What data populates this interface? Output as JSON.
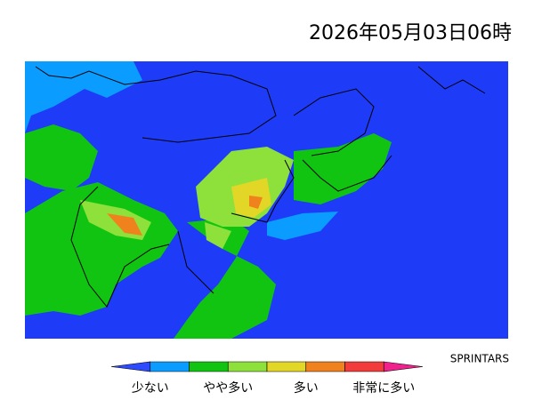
{
  "header": {
    "timestamp": "2026年05月03日06時",
    "model": "SPRINTARS"
  },
  "legend": {
    "colors": [
      "#2e4bff",
      "#0a9cff",
      "#12c412",
      "#8ee03a",
      "#e2d626",
      "#f0821e",
      "#f23c3c",
      "#f0208c"
    ],
    "labels": [
      "少ない",
      "やや多い",
      "多い",
      "非常に多い"
    ]
  }
}
